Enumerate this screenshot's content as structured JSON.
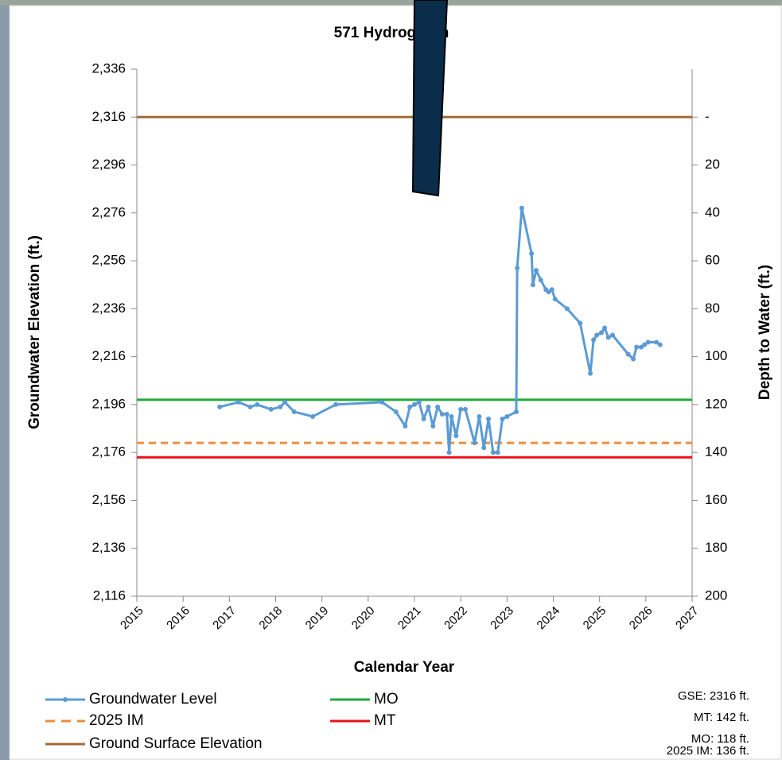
{
  "chart_data": {
    "type": "line",
    "title": "571 Hydrograph",
    "xlabel": "Calendar Year",
    "ylabel": "Groundwater Elevation (ft.)",
    "y2label": "Depth to Water (ft.)",
    "xlim": [
      2015,
      2027
    ],
    "xticks": [
      2015,
      2016,
      2017,
      2018,
      2019,
      2020,
      2021,
      2022,
      2023,
      2024,
      2025,
      2026,
      2027
    ],
    "ylim": [
      2116,
      2336
    ],
    "yticks": [
      {
        "value": 2116,
        "label": "2,116"
      },
      {
        "value": 2136,
        "label": "2,136"
      },
      {
        "value": 2156,
        "label": "2,156"
      },
      {
        "value": 2176,
        "label": "2,176"
      },
      {
        "value": 2196,
        "label": "2,196"
      },
      {
        "value": 2216,
        "label": "2,216"
      },
      {
        "value": 2236,
        "label": "2,236"
      },
      {
        "value": 2256,
        "label": "2,256"
      },
      {
        "value": 2276,
        "label": "2,276"
      },
      {
        "value": 2296,
        "label": "2,296"
      },
      {
        "value": 2316,
        "label": "2,316"
      },
      {
        "value": 2336,
        "label": "2,336"
      }
    ],
    "y2lim": [
      -20,
      200
    ],
    "y2_inverted": true,
    "y2ticks": [
      {
        "value": 0,
        "label": "-"
      },
      20,
      40,
      60,
      80,
      100,
      120,
      140,
      160,
      180,
      200
    ],
    "series": [
      {
        "name": "Groundwater Level",
        "color": "#5b9bd5",
        "x": [
          2016.79,
          2017.2,
          2017.45,
          2017.6,
          2017.9,
          2018.1,
          2018.2,
          2018.4,
          2018.8,
          2019.3,
          2020.3,
          2020.6,
          2020.8,
          2020.9,
          2021.0,
          2021.1,
          2021.2,
          2021.3,
          2021.4,
          2021.5,
          2021.6,
          2021.7,
          2021.75,
          2021.8,
          2021.9,
          2022.0,
          2022.1,
          2022.3,
          2022.4,
          2022.5,
          2022.6,
          2022.7,
          2022.8,
          2022.9,
          2023.0,
          2023.2,
          2023.22,
          2023.32,
          2023.53,
          2023.56,
          2023.63,
          2023.73,
          2023.84,
          2023.9,
          2023.97,
          2024.04,
          2024.3,
          2024.58,
          2024.8,
          2024.87,
          2024.94,
          2025.04,
          2025.11,
          2025.19,
          2025.28,
          2025.62,
          2025.73,
          2025.8,
          2025.9,
          2025.97,
          2026.05,
          2026.23,
          2026.31
        ],
        "values": [
          2195,
          2197,
          2195,
          2196,
          2194,
          2195,
          2197,
          2193,
          2191,
          2196,
          2197,
          2193,
          2187,
          2195,
          2196,
          2197,
          2190,
          2195,
          2187,
          2195,
          2192,
          2192,
          2176,
          2191,
          2183,
          2194,
          2194,
          2180,
          2191,
          2178,
          2190,
          2176,
          2176,
          2190,
          2191,
          2193,
          2253,
          2278,
          2259,
          2246,
          2252,
          2248,
          2244,
          2243,
          2244,
          2240,
          2236,
          2230,
          2209,
          2223,
          2225,
          2226,
          2228,
          2224,
          2225,
          2217,
          2215,
          2220,
          2220,
          2221,
          2222,
          2222,
          2221
        ]
      }
    ],
    "reference_lines": [
      {
        "name": "MO",
        "value": 2198,
        "color": "#1faa3c",
        "dash": false
      },
      {
        "name": "2025 IM",
        "value": 2180,
        "color": "#f08c3c",
        "dash": true
      },
      {
        "name": "MT",
        "value": 2174,
        "color": "#e8111b",
        "dash": false
      },
      {
        "name": "Ground Surface Elevation",
        "value": 2316,
        "color": "#a26b35",
        "dash": false
      }
    ],
    "annotations": [
      "GSE: 2316 ft.",
      "MT: 142 ft.",
      "MO: 118 ft.",
      "2025 IM: 136 ft."
    ]
  }
}
